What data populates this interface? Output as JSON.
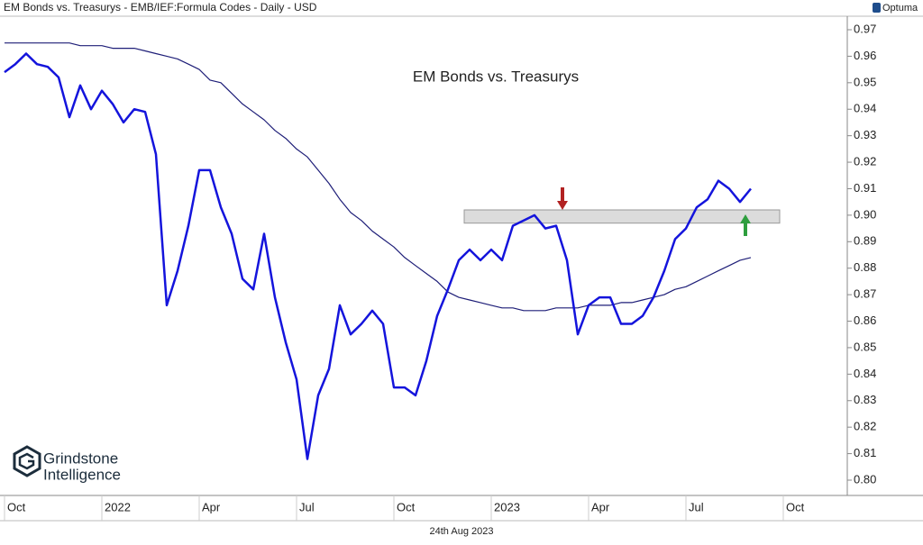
{
  "header": "EM Bonds vs. Treasurys - EMB/IEF:Formula Codes - Daily - USD",
  "brand": "Optuma",
  "date_label": "24th Aug 2023",
  "logo": [
    "Grindstone",
    "Intelligence"
  ],
  "chart_data": {
    "type": "line",
    "title": "EM Bonds vs. Treasurys",
    "categories": [
      "Oct",
      null,
      null,
      null,
      null,
      null,
      null,
      null,
      null,
      "2022",
      null,
      null,
      null,
      null,
      null,
      null,
      null,
      null,
      "Apr",
      null,
      null,
      null,
      null,
      null,
      null,
      null,
      null,
      "Jul",
      null,
      null,
      null,
      null,
      null,
      null,
      null,
      null,
      "Oct",
      null,
      null,
      null,
      null,
      null,
      null,
      null,
      null,
      "2023",
      null,
      null,
      null,
      null,
      null,
      null,
      null,
      null,
      "Apr",
      null,
      null,
      null,
      null,
      null,
      null,
      null,
      null,
      "Jul",
      null,
      null,
      null,
      null,
      null,
      null,
      null,
      null,
      "Oct"
    ],
    "series": [
      {
        "color": "#1414dc",
        "values": [
          0.954,
          0.957,
          0.961,
          0.957,
          0.956,
          0.952,
          0.937,
          0.949,
          0.94,
          0.947,
          0.942,
          0.935,
          0.94,
          0.939,
          0.923,
          0.866,
          0.879,
          0.896,
          0.917,
          0.917,
          0.903,
          0.893,
          0.876,
          0.872,
          0.893,
          0.869,
          0.852,
          0.838,
          0.808,
          0.832,
          0.842,
          0.866,
          0.855,
          0.859,
          0.864,
          0.859,
          0.835,
          0.835,
          0.832,
          0.845,
          0.862,
          0.872,
          0.883,
          0.887,
          0.883,
          0.887,
          0.883,
          0.896,
          0.898,
          0.9,
          0.895,
          0.896,
          0.883,
          0.855,
          0.866,
          0.869,
          0.869,
          0.859,
          0.859,
          0.862,
          0.869,
          0.879,
          0.891,
          0.895,
          0.903,
          0.906,
          0.913,
          0.91,
          0.905,
          0.91,
          null,
          null,
          null
        ]
      },
      {
        "color": "#1e1e78",
        "values": [
          0.965,
          0.965,
          0.965,
          0.965,
          0.965,
          0.965,
          0.965,
          0.964,
          0.964,
          0.964,
          0.963,
          0.963,
          0.963,
          0.962,
          0.961,
          0.96,
          0.959,
          0.957,
          0.955,
          0.951,
          0.95,
          0.946,
          0.942,
          0.939,
          0.936,
          0.932,
          0.929,
          0.925,
          0.922,
          0.917,
          0.912,
          0.906,
          0.901,
          0.898,
          0.894,
          0.891,
          0.888,
          0.884,
          0.881,
          0.878,
          0.875,
          0.871,
          0.869,
          0.868,
          0.867,
          0.866,
          0.865,
          0.865,
          0.864,
          0.864,
          0.864,
          0.865,
          0.865,
          0.865,
          0.866,
          0.866,
          0.866,
          0.867,
          0.867,
          0.868,
          0.869,
          0.87,
          0.872,
          0.873,
          0.875,
          0.877,
          0.879,
          0.881,
          0.883,
          0.884,
          null,
          null,
          null
        ]
      }
    ],
    "band": {
      "ymin": 0.897,
      "ymax": 0.902,
      "color": "#dcdcdc"
    },
    "ylim": [
      0.795,
      0.975
    ],
    "yticks": [
      {
        "value": 0.8,
        "label": "0.80"
      },
      0.81,
      0.82,
      0.83,
      0.84,
      0.85,
      0.86,
      0.87,
      0.88,
      0.89,
      {
        "value": 0.9,
        "label": "0.90"
      },
      0.91,
      0.92,
      0.93,
      0.94,
      0.95,
      0.96,
      0.97
    ]
  }
}
